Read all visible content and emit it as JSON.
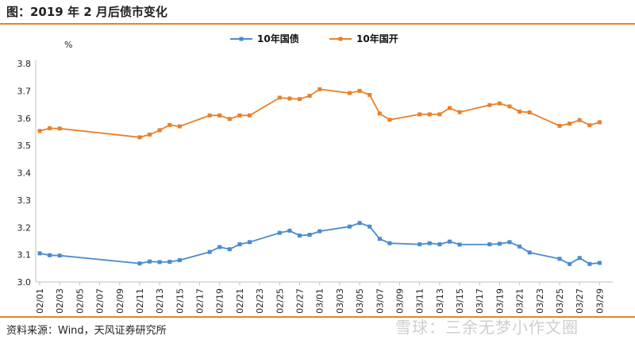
{
  "header": {
    "title": "图：2019 年 2 月后债市变化"
  },
  "footer": {
    "source": "资料来源：Wind，天风证券研究所",
    "watermark": "雪球：三余无梦小作文圈"
  },
  "colors": {
    "accent": "#e8812a",
    "series_blue": "#4a8bd0",
    "series_orange": "#e8812a"
  },
  "chart_data": {
    "type": "line",
    "ylabel": "%",
    "ylim": [
      3.0,
      3.8
    ],
    "yticks": [
      "3.0",
      "3.1",
      "3.2",
      "3.3",
      "3.4",
      "3.5",
      "3.6",
      "3.7",
      "3.8"
    ],
    "x_range": [
      "02/01",
      "03/30"
    ],
    "xticks": [
      "02/01",
      "02/03",
      "02/05",
      "02/07",
      "02/09",
      "02/11",
      "02/13",
      "02/15",
      "02/17",
      "02/19",
      "02/21",
      "02/23",
      "02/25",
      "02/27",
      "03/01",
      "03/03",
      "03/05",
      "03/07",
      "03/09",
      "03/11",
      "03/13",
      "03/15",
      "03/17",
      "03/19",
      "03/21",
      "03/23",
      "03/25",
      "03/27",
      "03/29"
    ],
    "legend_position": "top-center",
    "grid": false,
    "x": [
      "02/01",
      "02/02",
      "02/03",
      "02/11",
      "02/12",
      "02/13",
      "02/14",
      "02/15",
      "02/18",
      "02/19",
      "02/20",
      "02/21",
      "02/22",
      "02/25",
      "02/26",
      "02/27",
      "02/28",
      "03/01",
      "03/04",
      "03/05",
      "03/06",
      "03/07",
      "03/08",
      "03/11",
      "03/12",
      "03/13",
      "03/14",
      "03/15",
      "03/18",
      "03/19",
      "03/20",
      "03/21",
      "03/22",
      "03/25",
      "03/26",
      "03/27",
      "03/28",
      "03/29"
    ],
    "series": [
      {
        "name": "10年国债",
        "color": "#4a8bd0",
        "values": [
          3.105,
          3.098,
          3.097,
          3.068,
          3.075,
          3.073,
          3.074,
          3.08,
          3.11,
          3.128,
          3.12,
          3.138,
          3.146,
          3.18,
          3.188,
          3.17,
          3.173,
          3.186,
          3.203,
          3.216,
          3.203,
          3.158,
          3.142,
          3.138,
          3.142,
          3.138,
          3.148,
          3.137,
          3.138,
          3.14,
          3.146,
          3.13,
          3.108,
          3.085,
          3.066,
          3.088,
          3.066,
          3.07
        ]
      },
      {
        "name": "10年国开",
        "color": "#e8812a",
        "values": [
          3.553,
          3.563,
          3.562,
          3.53,
          3.54,
          3.556,
          3.575,
          3.57,
          3.61,
          3.61,
          3.597,
          3.61,
          3.61,
          3.675,
          3.672,
          3.67,
          3.682,
          3.706,
          3.692,
          3.7,
          3.685,
          3.617,
          3.594,
          3.614,
          3.614,
          3.614,
          3.637,
          3.622,
          3.648,
          3.654,
          3.643,
          3.624,
          3.621,
          3.572,
          3.58,
          3.593,
          3.574,
          3.585
        ]
      }
    ]
  }
}
